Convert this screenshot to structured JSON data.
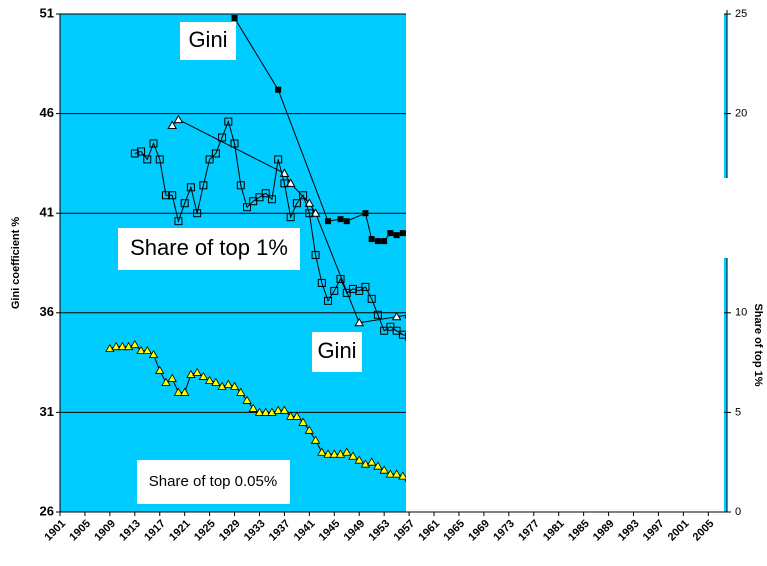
{
  "chart_data": {
    "type": "line",
    "y_label": "Gini coefficient %",
    "y2_label": "Share of top 1%",
    "xlim": [
      1901,
      2008
    ],
    "xticks": [
      1901,
      1905,
      1909,
      1913,
      1917,
      1921,
      1925,
      1929,
      1933,
      1937,
      1941,
      1945,
      1949,
      1953,
      1957,
      1961,
      1965,
      1969,
      1973,
      1977,
      1981,
      1985,
      1989,
      1993,
      1997,
      2001,
      2005
    ],
    "ylim": [
      26,
      51
    ],
    "yticks": [
      26,
      31,
      36,
      41,
      46,
      51
    ],
    "y2lim": [
      0,
      25
    ],
    "y2ticks": [
      0,
      5,
      10,
      20,
      25
    ],
    "grid": true,
    "background": "#00ccff",
    "series": [
      {
        "marker": "filled-square",
        "color": "#000000",
        "x": [
          1929,
          1936,
          1944,
          1946,
          1947,
          1950,
          1951,
          1952,
          1953,
          1954,
          1955,
          1956,
          1957
        ],
        "values": [
          50.8,
          47.2,
          40.6,
          40.7,
          40.6,
          41.0,
          39.7,
          39.6,
          39.6,
          40.0,
          39.9,
          40.0,
          40.1
        ]
      },
      {
        "marker": "open-triangle",
        "color": "#000000",
        "x": [
          1919,
          1920,
          1937,
          1938,
          1941,
          1942,
          1949,
          1955,
          1957
        ],
        "values": [
          45.4,
          45.7,
          43.0,
          42.5,
          41.5,
          41.0,
          35.5,
          35.8,
          35.9
        ]
      },
      {
        "marker": "open-square",
        "color": "#000000",
        "axis": "y2",
        "x": [
          1913,
          1914,
          1915,
          1916,
          1917,
          1918,
          1919,
          1920,
          1921,
          1922,
          1923,
          1924,
          1925,
          1926,
          1927,
          1928,
          1929,
          1930,
          1931,
          1932,
          1933,
          1934,
          1935,
          1936,
          1937,
          1938,
          1939,
          1940,
          1941,
          1942,
          1943,
          1944,
          1945,
          1946,
          1947,
          1948,
          1949,
          1950,
          1951,
          1952,
          1953,
          1954,
          1955,
          1956,
          1957
        ],
        "values": [
          18.0,
          18.1,
          17.7,
          18.5,
          17.7,
          15.9,
          15.9,
          14.6,
          15.5,
          16.3,
          15.0,
          16.4,
          17.7,
          18.0,
          18.8,
          19.6,
          18.5,
          16.4,
          15.3,
          15.6,
          15.8,
          16.0,
          15.7,
          17.7,
          16.5,
          14.8,
          15.5,
          15.9,
          15.0,
          12.9,
          11.5,
          10.6,
          11.1,
          11.7,
          11.0,
          11.2,
          11.1,
          11.3,
          10.7,
          9.9,
          9.1,
          9.3,
          9.1,
          8.9,
          8.8
        ]
      },
      {
        "marker": "yellow-triangle",
        "color": "#ffff00",
        "axis": "y2",
        "x": [
          1909,
          1910,
          1911,
          1912,
          1913,
          1914,
          1915,
          1916,
          1917,
          1918,
          1919,
          1920,
          1921,
          1922,
          1923,
          1924,
          1925,
          1926,
          1927,
          1928,
          1929,
          1930,
          1931,
          1932,
          1933,
          1934,
          1935,
          1936,
          1937,
          1938,
          1939,
          1940,
          1941,
          1942,
          1943,
          1944,
          1945,
          1946,
          1947,
          1948,
          1949,
          1950,
          1951,
          1952,
          1953,
          1954,
          1955,
          1956,
          1957
        ],
        "values": [
          8.2,
          8.3,
          8.3,
          8.3,
          8.4,
          8.1,
          8.1,
          7.9,
          7.1,
          6.5,
          6.7,
          6.0,
          6.0,
          6.9,
          7.0,
          6.8,
          6.6,
          6.5,
          6.3,
          6.4,
          6.3,
          6.0,
          5.6,
          5.2,
          5.0,
          5.0,
          5.0,
          5.1,
          5.1,
          4.8,
          4.8,
          4.5,
          4.1,
          3.6,
          3.0,
          2.9,
          2.9,
          2.9,
          3.0,
          2.8,
          2.6,
          2.4,
          2.5,
          2.3,
          2.1,
          1.9,
          1.9,
          1.8,
          1.7
        ]
      }
    ],
    "annotations": [
      "Gini",
      "Share of top 1%",
      "Gini",
      "Share of top 0.05%"
    ]
  }
}
